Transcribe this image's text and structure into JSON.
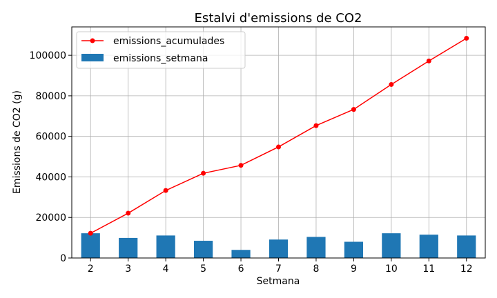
{
  "chart_data": {
    "type": "bar",
    "title": "Estalvi d'emissions de CO2",
    "xlabel": "Setmana",
    "ylabel": "Emissions de CO2 (g)",
    "categories": [
      "2",
      "3",
      "4",
      "5",
      "6",
      "7",
      "8",
      "9",
      "10",
      "11",
      "12"
    ],
    "ylim": [
      0,
      114000
    ],
    "yticks": [
      0,
      20000,
      40000,
      60000,
      80000,
      100000
    ],
    "grid": true,
    "legend_placement": "top-left",
    "series": [
      {
        "name": "emissions_acumulades",
        "kind": "line",
        "color": "#ff0000",
        "values": [
          12200,
          22100,
          33300,
          41800,
          45700,
          54800,
          65300,
          73300,
          85600,
          97200,
          108400
        ]
      },
      {
        "name": "emissions_setmana",
        "kind": "bar",
        "color": "#1f77b4",
        "values": [
          12200,
          9900,
          11100,
          8500,
          4000,
          9100,
          10400,
          8000,
          12200,
          11500,
          11100
        ]
      }
    ]
  }
}
